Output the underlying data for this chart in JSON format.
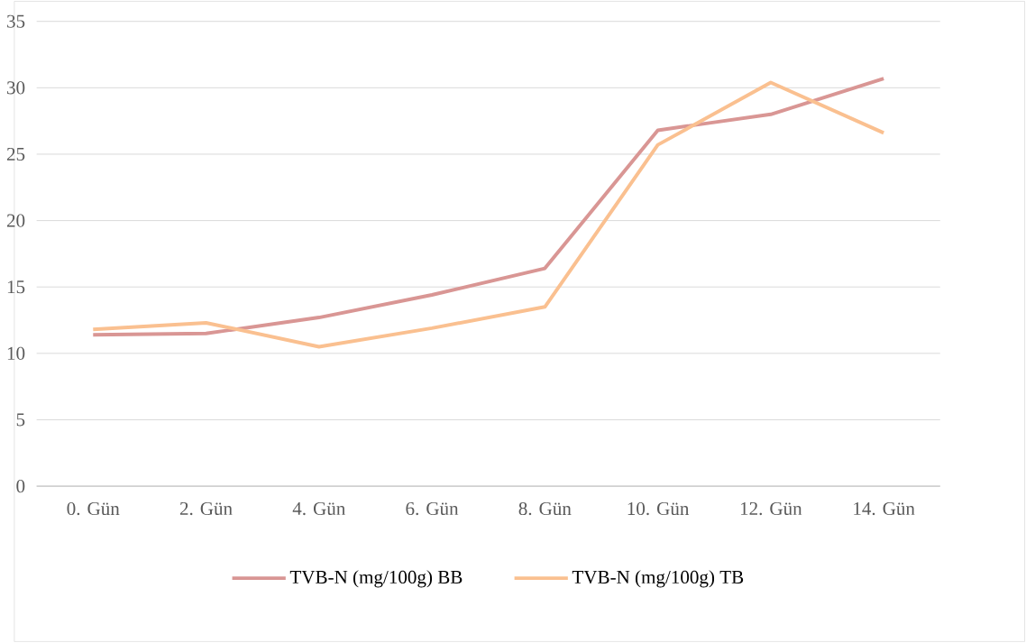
{
  "chart_data": {
    "type": "line",
    "categories": [
      "0. Gün",
      "2. Gün",
      "4. Gün",
      "6. Gün",
      "8. Gün",
      "10. Gün",
      "12. Gün",
      "14. Gün"
    ],
    "series": [
      {
        "name": "TVB-N (mg/100g) BB",
        "color": "#d99694",
        "values": [
          11.4,
          11.5,
          12.7,
          14.4,
          16.4,
          26.8,
          28.0,
          30.7
        ]
      },
      {
        "name": "TVB-N (mg/100g) TB",
        "color": "#fac090",
        "values": [
          11.8,
          12.3,
          10.5,
          11.9,
          13.5,
          25.7,
          30.4,
          26.6
        ]
      }
    ],
    "ylim": [
      0,
      35
    ],
    "yticks": [
      0,
      5,
      10,
      15,
      20,
      25,
      30,
      35
    ],
    "grid": "y",
    "legend": "bottom"
  }
}
